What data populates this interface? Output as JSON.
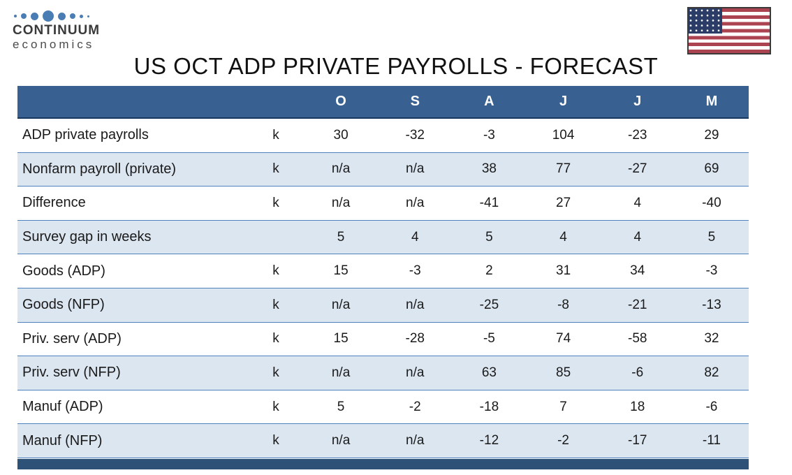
{
  "logo": {
    "brand_line1": "CONTINUUM",
    "brand_line2": "economics",
    "dot_color": "#4a7db3"
  },
  "flag": {
    "name": "us-flag"
  },
  "title": "US OCT ADP PRIVATE PAYROLLS - FORECAST",
  "table": {
    "columns": {
      "c1": "O",
      "c2": "S",
      "c3": "A",
      "c4": "J",
      "c5": "J",
      "c6": "M"
    },
    "rows": [
      {
        "label": "ADP private payrolls",
        "unit": "k",
        "values": [
          "30",
          "-32",
          "-3",
          "104",
          "-23",
          "29"
        ]
      },
      {
        "label": "Nonfarm payroll (private)",
        "unit": "k",
        "values": [
          "n/a",
          "n/a",
          "38",
          "77",
          "-27",
          "69"
        ]
      },
      {
        "label": "Difference",
        "unit": "k",
        "values": [
          "n/a",
          "n/a",
          "-41",
          "27",
          "4",
          "-40"
        ]
      },
      {
        "label": "Survey gap in weeks",
        "unit": "",
        "values": [
          "5",
          "4",
          "5",
          "4",
          "4",
          "5"
        ]
      },
      {
        "label": "Goods (ADP)",
        "unit": "k",
        "values": [
          "15",
          "-3",
          "2",
          "31",
          "34",
          "-3"
        ]
      },
      {
        "label": "Goods (NFP)",
        "unit": "k",
        "values": [
          "n/a",
          "n/a",
          "-25",
          "-8",
          "-21",
          "-13"
        ]
      },
      {
        "label": "Priv. serv (ADP)",
        "unit": "k",
        "values": [
          "15",
          "-28",
          "-5",
          "74",
          "-58",
          "32"
        ]
      },
      {
        "label": "Priv. serv (NFP)",
        "unit": "k",
        "values": [
          "n/a",
          "n/a",
          "63",
          "85",
          "-6",
          "82"
        ]
      },
      {
        "label": "Manuf (ADP)",
        "unit": "k",
        "values": [
          "5",
          "-2",
          "-18",
          "7",
          "18",
          "-6"
        ]
      },
      {
        "label": "Manuf (NFP)",
        "unit": "k",
        "values": [
          "n/a",
          "n/a",
          "-12",
          "-2",
          "-17",
          "-11"
        ]
      }
    ]
  },
  "chart_data": {
    "type": "table",
    "title": "US OCT ADP PRIVATE PAYROLLS - FORECAST",
    "categories": [
      "O",
      "S",
      "A",
      "J",
      "J",
      "M"
    ],
    "unit": "k",
    "series": [
      {
        "name": "ADP private payrolls",
        "values": [
          "30",
          "-32",
          "-3",
          "104",
          "-23",
          "29"
        ]
      },
      {
        "name": "Nonfarm payroll (private)",
        "values": [
          "n/a",
          "n/a",
          "38",
          "77",
          "-27",
          "69"
        ]
      },
      {
        "name": "Difference",
        "values": [
          "n/a",
          "n/a",
          "-41",
          "27",
          "4",
          "-40"
        ]
      },
      {
        "name": "Survey gap in weeks",
        "values": [
          "5",
          "4",
          "5",
          "4",
          "4",
          "5"
        ]
      },
      {
        "name": "Goods (ADP)",
        "values": [
          "15",
          "-3",
          "2",
          "31",
          "34",
          "-3"
        ]
      },
      {
        "name": "Goods (NFP)",
        "values": [
          "n/a",
          "n/a",
          "-25",
          "-8",
          "-21",
          "-13"
        ]
      },
      {
        "name": "Priv. serv (ADP)",
        "values": [
          "15",
          "-28",
          "-5",
          "74",
          "-58",
          "32"
        ]
      },
      {
        "name": "Priv. serv (NFP)",
        "values": [
          "n/a",
          "n/a",
          "63",
          "85",
          "-6",
          "82"
        ]
      },
      {
        "name": "Manuf (ADP)",
        "values": [
          "5",
          "-2",
          "-18",
          "7",
          "18",
          "-6"
        ]
      },
      {
        "name": "Manuf (NFP)",
        "values": [
          "n/a",
          "n/a",
          "-12",
          "-2",
          "-17",
          "-11"
        ]
      }
    ]
  },
  "colors": {
    "header_bg": "#386191",
    "alt_row_bg": "#dce6f1",
    "row_line": "#4f81bd",
    "dark_line": "#17375e",
    "bottom_bar": "#2e5277",
    "flag_red": "#ac4350",
    "flag_navy": "#2b3d66"
  }
}
